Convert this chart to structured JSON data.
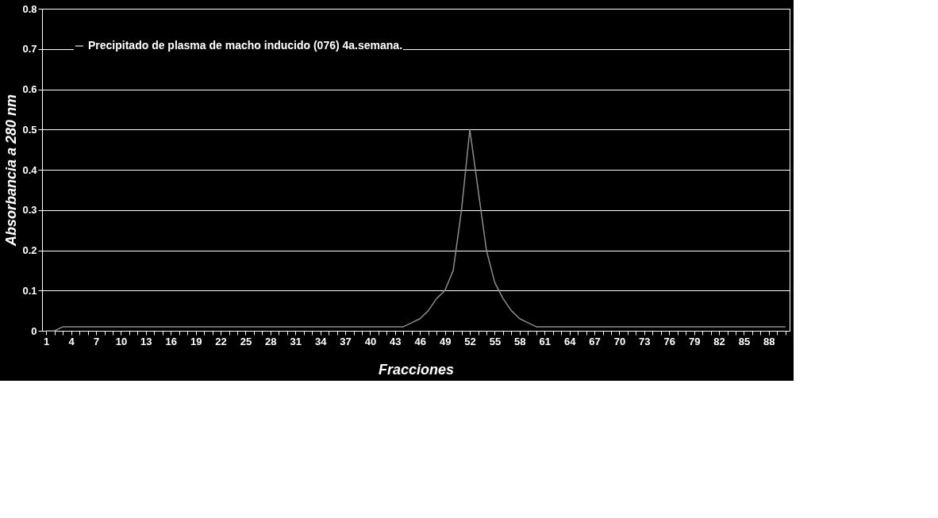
{
  "chart_data": {
    "type": "line",
    "xlabel": "Fracciones",
    "ylabel": "Absorbancia a 280 nm",
    "categories": [
      "1",
      null,
      null,
      "4",
      null,
      null,
      "7",
      null,
      null,
      "10",
      null,
      null,
      "13",
      null,
      null,
      "16",
      null,
      null,
      "19",
      null,
      null,
      "22",
      null,
      null,
      "25",
      null,
      null,
      "28",
      null,
      null,
      "31",
      null,
      null,
      "34",
      null,
      null,
      "37",
      null,
      null,
      "40",
      null,
      null,
      "43",
      null,
      null,
      "46",
      null,
      null,
      "49",
      null,
      null,
      "52",
      null,
      null,
      "55",
      null,
      null,
      "58",
      null,
      null,
      "61",
      null,
      null,
      "64",
      null,
      null,
      "67",
      null,
      null,
      "70",
      null,
      null,
      "73",
      null,
      null,
      "76",
      null,
      null,
      "79",
      null,
      null,
      "82",
      null,
      null,
      "85",
      null,
      null,
      "88",
      null,
      null
    ],
    "series": [
      {
        "name": "Precipitado de plasma de macho inducido (076) 4a.semana.",
        "color": "#8c8c8c",
        "values": [
          0,
          0,
          0.01,
          0.01,
          0.01,
          0.01,
          0.01,
          0.01,
          0.01,
          0.01,
          0.01,
          0.01,
          0.01,
          0.01,
          0.01,
          0.01,
          0.01,
          0.01,
          0.01,
          0.01,
          0.01,
          0.01,
          0.01,
          0.01,
          0.01,
          0.01,
          0.01,
          0.01,
          0.01,
          0.01,
          0.01,
          0.01,
          0.01,
          0.01,
          0.01,
          0.01,
          0.01,
          0.01,
          0.01,
          0.01,
          0.01,
          0.01,
          0.01,
          0.01,
          0.02,
          0.03,
          0.05,
          0.08,
          0.1,
          0.15,
          0.3,
          0.5,
          0.35,
          0.2,
          0.12,
          0.08,
          0.05,
          0.03,
          0.02,
          0.01,
          0.01,
          0.01,
          0.01,
          0.01,
          0.01,
          0.01,
          0.01,
          0.01,
          0.01,
          0.01,
          0.01,
          0.01,
          0.01,
          0.01,
          0.01,
          0.01,
          0.01,
          0.01,
          0.01,
          0.01,
          0.01,
          0.01,
          0.01,
          0.01,
          0.01,
          0.01,
          0.01,
          0.01,
          0.01,
          0.01
        ]
      }
    ],
    "ylim": [
      0,
      0.8
    ],
    "yticks": [
      0,
      0.1,
      0.2,
      0.3,
      0.4,
      0.5,
      0.6,
      0.7,
      0.8
    ],
    "grid": "y",
    "legend": "top left",
    "marker": "none",
    "line_style": "solid"
  }
}
